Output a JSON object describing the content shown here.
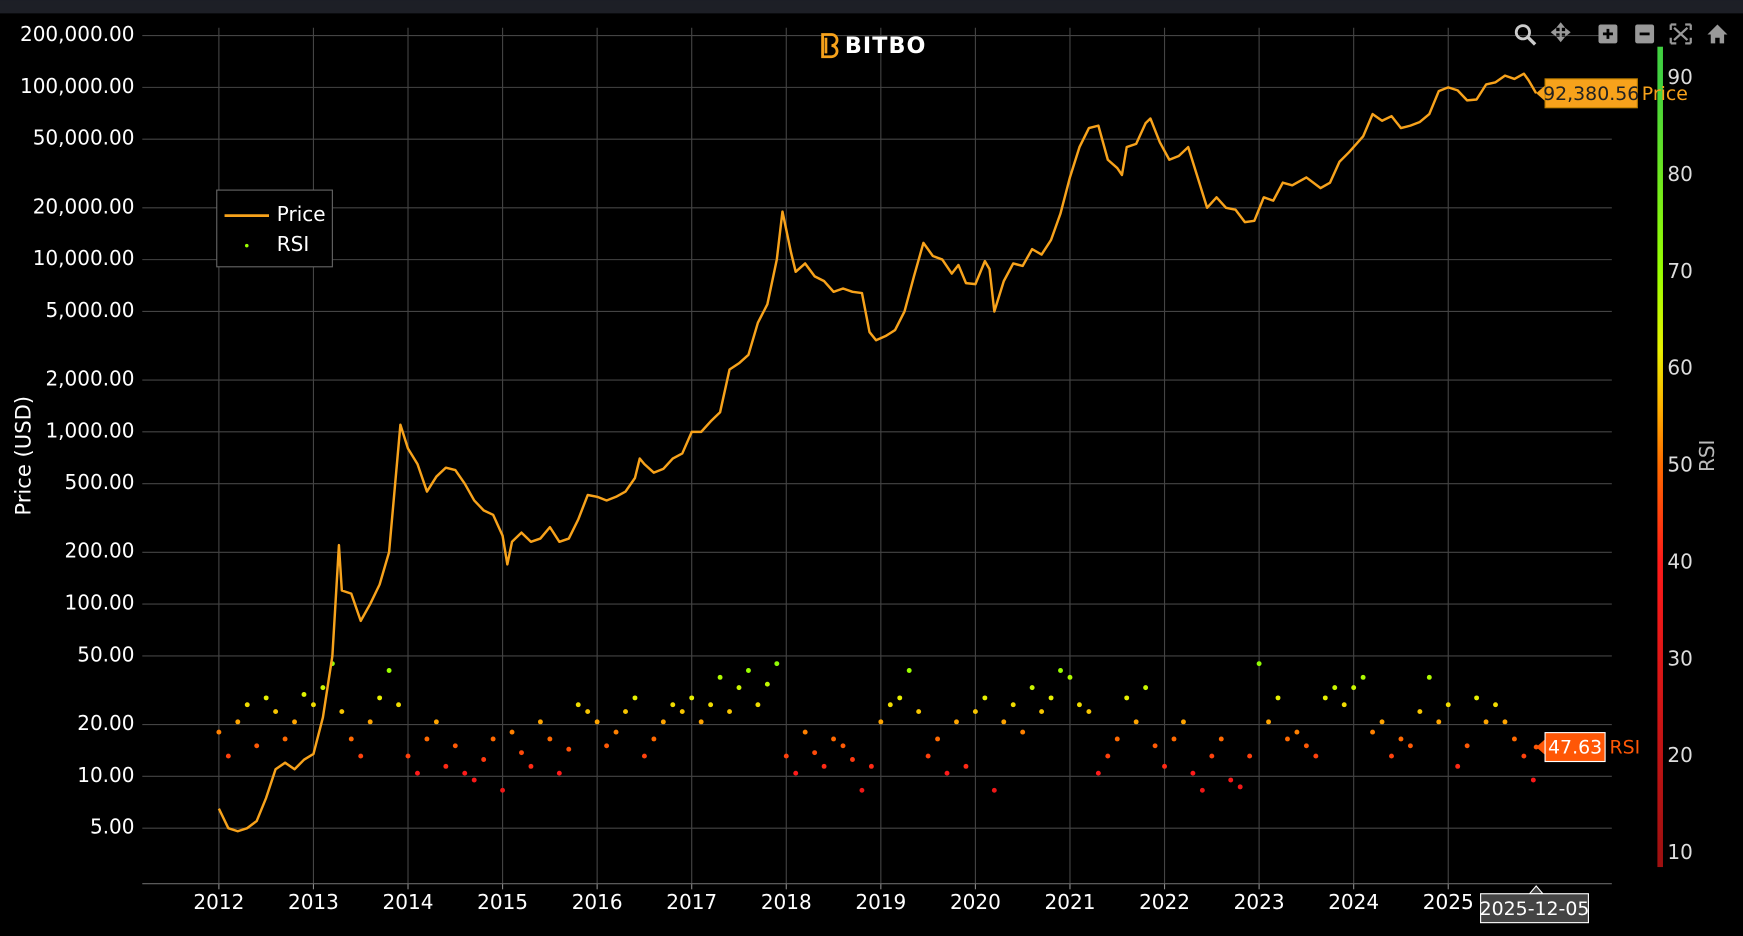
{
  "logo": "BITBO",
  "chart_data": {
    "type": "line",
    "ylabel": "Price (USD)",
    "log_y": true,
    "grid": true,
    "legend": "upper left",
    "xlim": [
      2011.19,
      2026.73
    ],
    "xticks": [
      2012,
      2013,
      2014,
      2015,
      2016,
      2017,
      2018,
      2019,
      2020,
      2021,
      2022,
      2023,
      2024,
      2025
    ],
    "ylim": [
      2.38,
      269000
    ],
    "yticks": [
      {
        "value": 200000,
        "label": "200,000.00"
      },
      {
        "value": 100000,
        "label": "100,000.00"
      },
      {
        "value": 50000,
        "label": "50,000.00"
      },
      {
        "value": 20000,
        "label": "20,000.00"
      },
      {
        "value": 10000,
        "label": "10,000.00"
      },
      {
        "value": 5000,
        "label": "5,000.00"
      },
      {
        "value": 2000,
        "label": "2,000.00"
      },
      {
        "value": 1000,
        "label": "1,000.00"
      },
      {
        "value": 500,
        "label": "500.00"
      },
      {
        "value": 200,
        "label": "200.00"
      },
      {
        "value": 100,
        "label": "100.00"
      },
      {
        "value": 50,
        "label": "50.00"
      },
      {
        "value": 20,
        "label": "20.00"
      },
      {
        "value": 10,
        "label": "10.00"
      },
      {
        "value": 5,
        "label": "5.00"
      }
    ],
    "y2lim": [
      7.7,
      262
    ],
    "colorbar": {
      "title": "RSI",
      "range": [
        8.6,
        93.3
      ],
      "ticks": [
        10,
        20,
        30,
        40,
        50,
        60,
        70,
        80,
        90
      ],
      "colorscale": [
        [
          10,
          "#a01010"
        ],
        [
          40,
          "#ff1a1a"
        ],
        [
          50,
          "#ff6a00"
        ],
        [
          56,
          "#ffb000"
        ],
        [
          62,
          "#e8f000"
        ],
        [
          70,
          "#9aff00"
        ],
        [
          90,
          "#40d040"
        ]
      ]
    },
    "series": [
      {
        "name": "Price",
        "color": "#f7a21b",
        "type": "line",
        "x": [
          2012.0,
          2012.1,
          2012.2,
          2012.3,
          2012.4,
          2012.5,
          2012.6,
          2012.7,
          2012.8,
          2012.9,
          2013.0,
          2013.1,
          2013.2,
          2013.27,
          2013.3,
          2013.4,
          2013.5,
          2013.6,
          2013.7,
          2013.8,
          2013.92,
          2014.0,
          2014.1,
          2014.2,
          2014.3,
          2014.4,
          2014.5,
          2014.6,
          2014.7,
          2014.8,
          2014.9,
          2015.0,
          2015.05,
          2015.1,
          2015.2,
          2015.3,
          2015.4,
          2015.5,
          2015.6,
          2015.7,
          2015.8,
          2015.9,
          2016.0,
          2016.1,
          2016.2,
          2016.3,
          2016.4,
          2016.45,
          2016.5,
          2016.6,
          2016.7,
          2016.8,
          2016.9,
          2017.0,
          2017.1,
          2017.2,
          2017.3,
          2017.4,
          2017.5,
          2017.6,
          2017.7,
          2017.8,
          2017.9,
          2017.96,
          2018.05,
          2018.1,
          2018.2,
          2018.3,
          2018.4,
          2018.5,
          2018.6,
          2018.7,
          2018.8,
          2018.88,
          2018.95,
          2019.05,
          2019.15,
          2019.25,
          2019.35,
          2019.45,
          2019.55,
          2019.65,
          2019.75,
          2019.82,
          2019.9,
          2020.0,
          2020.1,
          2020.15,
          2020.2,
          2020.3,
          2020.4,
          2020.5,
          2020.6,
          2020.7,
          2020.8,
          2020.9,
          2021.0,
          2021.1,
          2021.2,
          2021.3,
          2021.4,
          2021.5,
          2021.55,
          2021.6,
          2021.7,
          2021.8,
          2021.85,
          2021.95,
          2022.05,
          2022.15,
          2022.25,
          2022.35,
          2022.45,
          2022.55,
          2022.65,
          2022.75,
          2022.85,
          2022.95,
          2023.05,
          2023.15,
          2023.25,
          2023.35,
          2023.5,
          2023.65,
          2023.75,
          2023.85,
          2023.95,
          2024.1,
          2024.2,
          2024.3,
          2024.4,
          2024.5,
          2024.6,
          2024.7,
          2024.8,
          2024.9,
          2025.0,
          2025.1,
          2025.2,
          2025.3,
          2025.4,
          2025.5,
          2025.6,
          2025.7,
          2025.8,
          2025.85,
          2025.93
        ],
        "values": [
          6.5,
          5,
          4.8,
          5,
          5.5,
          7.5,
          11,
          12,
          11,
          12.5,
          13.5,
          22,
          50,
          220,
          120,
          115,
          80,
          100,
          130,
          200,
          1100,
          800,
          650,
          450,
          550,
          620,
          600,
          500,
          400,
          350,
          330,
          250,
          170,
          230,
          260,
          230,
          240,
          280,
          230,
          240,
          310,
          430,
          420,
          400,
          420,
          450,
          540,
          700,
          650,
          580,
          610,
          700,
          750,
          1000,
          1000,
          1150,
          1300,
          2300,
          2500,
          2800,
          4300,
          5500,
          10000,
          19000,
          11000,
          8500,
          9500,
          8000,
          7500,
          6500,
          6800,
          6500,
          6400,
          3800,
          3400,
          3600,
          3900,
          5000,
          8000,
          12500,
          10500,
          10000,
          8300,
          9300,
          7300,
          7200,
          9800,
          8800,
          5000,
          7500,
          9500,
          9200,
          11500,
          10700,
          13000,
          18500,
          30000,
          45000,
          58000,
          60000,
          38000,
          34000,
          31000,
          45000,
          47000,
          62000,
          66000,
          48000,
          38000,
          40000,
          45000,
          30000,
          20000,
          23000,
          20000,
          19500,
          16500,
          16800,
          23000,
          22000,
          28000,
          27000,
          30000,
          26000,
          28000,
          37000,
          42000,
          52000,
          70000,
          64000,
          68000,
          58000,
          60000,
          63000,
          70000,
          95000,
          100000,
          96000,
          84000,
          85000,
          104000,
          107000,
          117000,
          112000,
          120000,
          110000,
          92380.56
        ]
      },
      {
        "name": "RSI",
        "type": "scatter",
        "axis": "y2",
        "x": [
          2012.0,
          2012.1,
          2012.2,
          2012.3,
          2012.4,
          2012.5,
          2012.6,
          2012.7,
          2012.8,
          2012.9,
          2013.0,
          2013.1,
          2013.2,
          2013.3,
          2013.4,
          2013.5,
          2013.6,
          2013.7,
          2013.8,
          2013.9,
          2014.0,
          2014.1,
          2014.2,
          2014.3,
          2014.4,
          2014.5,
          2014.6,
          2014.7,
          2014.8,
          2014.9,
          2015.0,
          2015.1,
          2015.2,
          2015.3,
          2015.4,
          2015.5,
          2015.6,
          2015.7,
          2015.8,
          2015.9,
          2016.0,
          2016.1,
          2016.2,
          2016.3,
          2016.4,
          2016.5,
          2016.6,
          2016.7,
          2016.8,
          2016.9,
          2017.0,
          2017.1,
          2017.2,
          2017.3,
          2017.4,
          2017.5,
          2017.6,
          2017.7,
          2017.8,
          2017.9,
          2018.0,
          2018.1,
          2018.2,
          2018.3,
          2018.4,
          2018.5,
          2018.6,
          2018.7,
          2018.8,
          2018.9,
          2019.0,
          2019.1,
          2019.2,
          2019.3,
          2019.4,
          2019.5,
          2019.6,
          2019.7,
          2019.8,
          2019.9,
          2020.0,
          2020.1,
          2020.2,
          2020.3,
          2020.4,
          2020.5,
          2020.6,
          2020.7,
          2020.8,
          2020.9,
          2021.0,
          2021.1,
          2021.2,
          2021.3,
          2021.4,
          2021.5,
          2021.6,
          2021.7,
          2021.8,
          2021.9,
          2022.0,
          2022.1,
          2022.2,
          2022.3,
          2022.4,
          2022.5,
          2022.6,
          2022.7,
          2022.8,
          2022.9,
          2023.0,
          2023.1,
          2023.2,
          2023.3,
          2023.4,
          2023.5,
          2023.6,
          2023.7,
          2023.8,
          2023.9,
          2024.0,
          2024.1,
          2024.2,
          2024.3,
          2024.4,
          2024.5,
          2024.6,
          2024.7,
          2024.8,
          2024.9,
          2025.0,
          2025.1,
          2025.2,
          2025.3,
          2025.4,
          2025.5,
          2025.6,
          2025.7,
          2025.8,
          2025.9,
          2025.93
        ],
        "values": [
          52,
          45,
          55,
          60,
          48,
          62,
          58,
          50,
          55,
          63,
          60,
          65,
          72,
          58,
          50,
          45,
          55,
          62,
          70,
          60,
          45,
          40,
          50,
          55,
          42,
          48,
          40,
          38,
          44,
          50,
          35,
          52,
          46,
          42,
          55,
          50,
          40,
          47,
          60,
          58,
          55,
          48,
          52,
          58,
          62,
          45,
          50,
          55,
          60,
          58,
          62,
          55,
          60,
          68,
          58,
          65,
          70,
          60,
          66,
          72,
          45,
          40,
          52,
          46,
          42,
          50,
          48,
          44,
          35,
          42,
          55,
          60,
          62,
          70,
          58,
          45,
          50,
          40,
          55,
          42,
          58,
          62,
          35,
          55,
          60,
          52,
          65,
          58,
          62,
          70,
          68,
          60,
          58,
          40,
          45,
          50,
          62,
          55,
          65,
          48,
          42,
          50,
          55,
          40,
          35,
          45,
          50,
          38,
          36,
          45,
          72,
          55,
          62,
          50,
          52,
          48,
          45,
          62,
          65,
          60,
          65,
          68,
          52,
          55,
          45,
          50,
          48,
          58,
          68,
          55,
          60,
          42,
          48,
          62,
          55,
          60,
          55,
          50,
          45,
          38,
          47.63
        ]
      }
    ],
    "annotations": [
      {
        "label": "92,380.56",
        "x": 2025.93,
        "y": 92380.56,
        "axis": "y"
      },
      {
        "label": "47.63",
        "x": 2025.93,
        "y": 47.63,
        "axis": "y2"
      },
      {
        "label": "2025-12-05",
        "x": 2025.93,
        "axis": "x"
      }
    ]
  }
}
